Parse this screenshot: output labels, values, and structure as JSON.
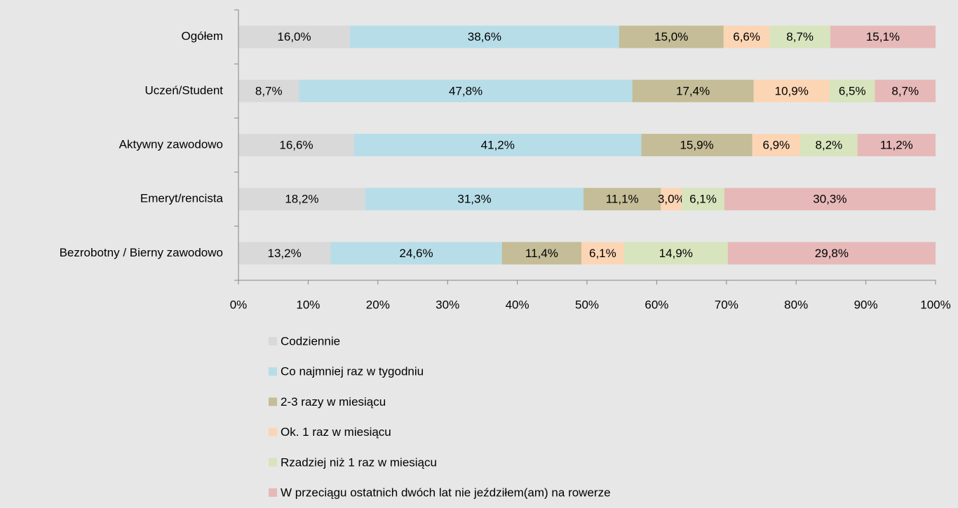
{
  "chart_data": {
    "type": "stacked-bar-horizontal",
    "categories": [
      "Ogółem",
      "Uczeń/Student",
      "Aktywny zawodowo",
      "Emeryt/rencista",
      "Bezrobotny / Bierny zawodowo"
    ],
    "series": [
      {
        "name": "Codziennie",
        "color": "#d9d9d9",
        "values": [
          16.0,
          8.7,
          16.6,
          18.2,
          13.2
        ],
        "value_labels": [
          "16,0%",
          "8,7%",
          "16,6%",
          "18,2%",
          "13,2%"
        ]
      },
      {
        "name": "Co najmniej raz w tygodniu",
        "color": "#b7dde8",
        "values": [
          38.6,
          47.8,
          41.2,
          31.3,
          24.6
        ],
        "value_labels": [
          "38,6%",
          "47,8%",
          "41,2%",
          "31,3%",
          "24,6%"
        ]
      },
      {
        "name": "2-3 razy w miesiącu",
        "color": "#c4bd97",
        "values": [
          15.0,
          17.4,
          15.9,
          11.1,
          11.4
        ],
        "value_labels": [
          "15,0%",
          "17,4%",
          "15,9%",
          "11,1%",
          "11,4%"
        ]
      },
      {
        "name": "Ok. 1 raz w miesiącu",
        "color": "#fcd5b5",
        "values": [
          6.6,
          10.9,
          6.9,
          3.0,
          6.1
        ],
        "value_labels": [
          "6,6%",
          "10,9%",
          "6,9%",
          "3,0%",
          "6,1%"
        ]
      },
      {
        "name": "Rzadziej niż 1 raz w miesiącu",
        "color": "#d7e4bd",
        "values": [
          8.7,
          6.5,
          8.2,
          6.1,
          14.9
        ],
        "value_labels": [
          "8,7%",
          "6,5%",
          "8,2%",
          "6,1%",
          "14,9%"
        ]
      },
      {
        "name": "W przeciągu ostatnich dwóch lat nie jeździłem(am) na rowerze",
        "color": "#e6b9b8",
        "values": [
          15.1,
          8.7,
          11.2,
          30.3,
          29.8
        ],
        "value_labels": [
          "15,1%",
          "8,7%",
          "11,2%",
          "30,3%",
          "29,8%"
        ]
      }
    ],
    "xlim": [
      0,
      100
    ],
    "xticks": [
      {
        "value": 0,
        "label": "0%"
      },
      {
        "value": 10,
        "label": "10%"
      },
      {
        "value": 20,
        "label": "20%"
      },
      {
        "value": 30,
        "label": "30%"
      },
      {
        "value": 40,
        "label": "40%"
      },
      {
        "value": 50,
        "label": "50%"
      },
      {
        "value": 60,
        "label": "60%"
      },
      {
        "value": 70,
        "label": "70%"
      },
      {
        "value": 80,
        "label": "80%"
      },
      {
        "value": 90,
        "label": "90%"
      },
      {
        "value": 100,
        "label": "100%"
      }
    ],
    "legend": "bottom-left"
  }
}
